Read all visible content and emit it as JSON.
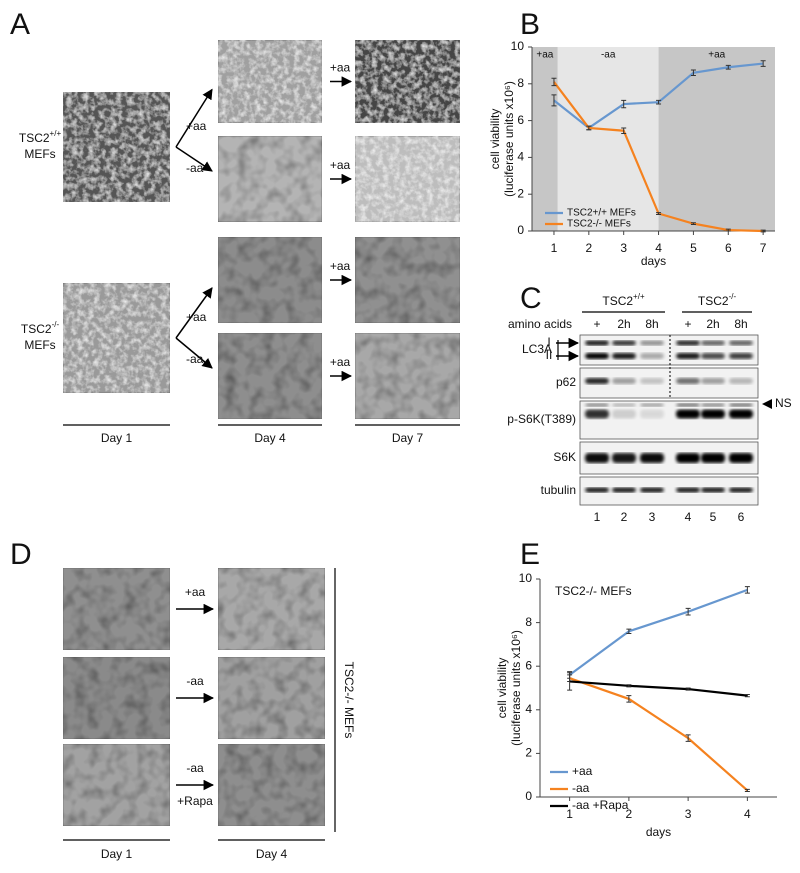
{
  "panel_labels": [
    "A",
    "B",
    "C",
    "D",
    "E"
  ],
  "panel_a": {
    "rows": [
      {
        "name": "TSC2",
        "sup": "+/+",
        "line2": "MEFs",
        "branches": [
          "+aa",
          "-aa"
        ],
        "arrows": [
          "+aa",
          "+aa"
        ]
      },
      {
        "name": "TSC2",
        "sup": "-/-",
        "line2": "MEFs",
        "branches": [
          "+aa",
          "-aa"
        ],
        "arrows": [
          "+aa",
          "+aa"
        ]
      }
    ],
    "days": [
      "Day 1",
      "Day 4",
      "Day 7"
    ]
  },
  "panel_c": {
    "groups": [
      {
        "name": "TSC2",
        "sup": "+/+"
      },
      {
        "name": "TSC2",
        "sup": "-/-"
      }
    ],
    "treatment_label": "amino acids",
    "lanes_treatment": [
      "+",
      "2h",
      "8h",
      "+",
      "2h",
      "8h"
    ],
    "blots": [
      "LC3A",
      "p62",
      "p-S6K(T389)",
      "S6K",
      "tubulin"
    ],
    "lc3_forms": [
      "I",
      "II"
    ],
    "ns_label": "NS",
    "lane_numbers": [
      1,
      2,
      3,
      4,
      5,
      6
    ]
  },
  "panel_d": {
    "arrow_labels": [
      "+aa",
      "-aa",
      "-aa"
    ],
    "rapa_label": "+Rapa",
    "side_label": "TSC2-/- MEFs",
    "days": [
      "Day 1",
      "Day 4"
    ]
  },
  "chart_data": [
    {
      "type": "line",
      "x_label": "days",
      "y_label": [
        "cell viability",
        "(luciferase units x10⁶)"
      ],
      "x": [
        1,
        2,
        3,
        4,
        5,
        6,
        7
      ],
      "xlim": [
        0.37,
        7.34
      ],
      "xticks": [
        1,
        2,
        3,
        4,
        5,
        6,
        7
      ],
      "ylim": [
        0,
        10
      ],
      "yticks": [
        0,
        2,
        4,
        6,
        8,
        10
      ],
      "periods": [
        {
          "label": "+aa",
          "start": 0.37,
          "end": 1.11,
          "color": "#c6c6c6"
        },
        {
          "label": "-aa",
          "start": 1.11,
          "end": 4.0,
          "color": "#e6e6e6"
        },
        {
          "label": "+aa",
          "start": 4.0,
          "end": 7.34,
          "color": "#c6c6c6"
        }
      ],
      "series": [
        {
          "name": "TSC2+/+ MEFs",
          "color": "#6797cf",
          "values": [
            7.1,
            5.6,
            6.9,
            7.0,
            8.6,
            8.9,
            9.1
          ],
          "errors": [
            0.3,
            0.1,
            0.2,
            0.1,
            0.15,
            0.1,
            0.15
          ]
        },
        {
          "name": "TSC2-/- MEFs",
          "color": "#f5821f",
          "values": [
            8.1,
            5.6,
            5.45,
            0.95,
            0.4,
            0.05,
            0.0
          ],
          "errors": [
            0.2,
            0.1,
            0.15,
            0.05,
            0.05,
            0.05,
            0.05
          ]
        }
      ],
      "legend": "lower left"
    },
    {
      "type": "line",
      "annotation": "TSC2-/- MEFs",
      "x_label": "days",
      "y_label": [
        "cell viability",
        "(luciferase units x10⁶)"
      ],
      "x": [
        1,
        2,
        3,
        4
      ],
      "xlim": [
        0.5,
        4.5
      ],
      "xticks": [
        1,
        2,
        3,
        4
      ],
      "ylim": [
        0,
        10
      ],
      "yticks": [
        0,
        2,
        4,
        6,
        8,
        10
      ],
      "series": [
        {
          "name": "+aa",
          "color": "#6797cf",
          "values": [
            5.6,
            7.6,
            8.5,
            9.5
          ],
          "errors": [
            0.15,
            0.1,
            0.15,
            0.15
          ]
        },
        {
          "name": "-aa",
          "color": "#f5821f",
          "values": [
            5.45,
            4.5,
            2.7,
            0.3
          ],
          "errors": [
            0.15,
            0.15,
            0.15,
            0.05
          ]
        },
        {
          "name": "-aa +Rapa",
          "color": "#000000",
          "values": [
            5.3,
            5.1,
            4.95,
            4.65
          ],
          "errors": [
            0.4,
            0.05,
            0.05,
            0.05
          ]
        }
      ],
      "legend": "lower left"
    }
  ]
}
